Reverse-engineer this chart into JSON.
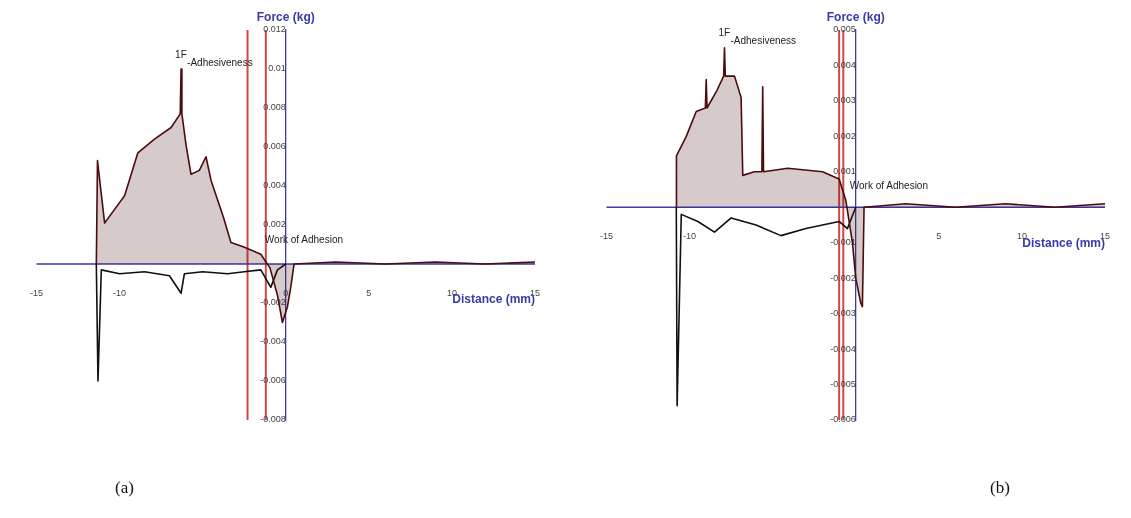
{
  "chart_data": [
    {
      "type": "line",
      "ylabel": "Force (kg)",
      "xlabel": "Distance (mm)",
      "xlim": [
        -15,
        15
      ],
      "xticks": [
        -15,
        -10,
        0,
        5,
        10,
        15
      ],
      "ylim": [
        -0.008,
        0.012
      ],
      "yticks": [
        -0.008,
        -0.006,
        -0.004,
        -0.002,
        0.002,
        0.004,
        0.006,
        0.008,
        0.01,
        0.012
      ],
      "grid": false,
      "legend": false,
      "marker": "none",
      "line_style": "solid",
      "series": [
        {
          "type": "area",
          "color": "#4a0c0c",
          "x": [
            -11.4,
            -11.33,
            -10.9,
            -10.3,
            -9.7,
            -8.9,
            -7.9,
            -6.9,
            -6.35,
            -6.3,
            -6.25,
            -6.0,
            -5.7,
            -5.2,
            -4.8,
            -4.5,
            -3.75,
            -3.3,
            -2.6,
            -1.5,
            -0.95,
            -0.5,
            -0.2,
            0.1,
            0.3,
            0.5,
            3,
            6,
            9,
            12,
            15
          ],
          "values": [
            0,
            0.0053,
            0.0021,
            0.0028,
            0.0035,
            0.0057,
            0.0064,
            0.007,
            0.0077,
            0.01,
            0.0077,
            0.0061,
            0.0046,
            0.0048,
            0.0055,
            0.0043,
            0.0024,
            0.0011,
            0.0009,
            0.0005,
            -0.0002,
            -0.0016,
            -0.003,
            -0.0022,
            -0.0012,
            0,
            0.0001,
            0,
            0.0001,
            0,
            0.0001
          ]
        },
        {
          "type": "line",
          "color": "#101010",
          "x": [
            -11.4,
            -11.3,
            -11.1,
            -10,
            -8.5,
            -7,
            -6.3,
            -6.1,
            -5,
            -3.5,
            -2.5,
            -1.5,
            -0.9,
            -0.5,
            0
          ],
          "values": [
            0,
            -0.006,
            -0.0003,
            -0.0005,
            -0.0004,
            -0.0006,
            -0.0015,
            -0.0005,
            -0.0004,
            -0.0005,
            -0.0004,
            -0.0003,
            -0.0012,
            -0.0003,
            0
          ]
        }
      ],
      "ref_lines": [
        {
          "axis": "x",
          "value": -2.3,
          "color": "#d04848"
        },
        {
          "axis": "x",
          "value": -1.2,
          "color": "#d04848"
        },
        {
          "axis": "y",
          "value": 0,
          "color": "#3a3aa8"
        }
      ],
      "annotations": [
        {
          "text": "1F",
          "x": -6.3,
          "y": 0.01
        },
        {
          "text": "-Adhesiveness",
          "x": -6.3,
          "y": 0.01
        },
        {
          "text": "Work of Adhesion",
          "x": -1.5,
          "y": 0.0005
        },
        "(a)"
      ]
    },
    {
      "type": "line",
      "ylabel": "Force (kg)",
      "xlabel": "Distance (mm)",
      "xlim": [
        -15,
        15
      ],
      "xticks": [
        -15,
        -10,
        5,
        10,
        15
      ],
      "ylim": [
        -0.006,
        0.005
      ],
      "yticks": [
        -0.006,
        -0.005,
        -0.004,
        -0.003,
        -0.002,
        -0.001,
        0.001,
        0.002,
        0.003,
        0.004,
        0.005
      ],
      "grid": false,
      "legend": false,
      "marker": "none",
      "line_style": "solid",
      "series": [
        {
          "type": "area",
          "color": "#4a0c0c",
          "x": [
            -10.8,
            -10.79,
            -10.2,
            -9.6,
            -9.05,
            -9.0,
            -8.95,
            -8.35,
            -7.95,
            -7.9,
            -7.85,
            -7.3,
            -6.9,
            -6.8,
            -6.1,
            -5.65,
            -5.6,
            -5.55,
            -4.1,
            -2.0,
            -1.0,
            -0.6,
            -0.2,
            0,
            0.3,
            0.4,
            0.5,
            3,
            6,
            9,
            12,
            15
          ],
          "values": [
            0,
            0.00145,
            0.002,
            0.0027,
            0.0028,
            0.0036,
            0.0028,
            0.0033,
            0.0037,
            0.0045,
            0.0037,
            0.0037,
            0.0031,
            0.0009,
            0.001,
            0.001,
            0.0034,
            0.001,
            0.0011,
            0.001,
            0.0008,
            0.0002,
            -0.001,
            -0.002,
            -0.0027,
            -0.0028,
            0,
            0.0001,
            0,
            0.0001,
            0,
            0.0001
          ]
        },
        {
          "type": "line",
          "color": "#101010",
          "x": [
            -10.8,
            -10.75,
            -10.5,
            -9.5,
            -8.5,
            -7.5,
            -6,
            -4.5,
            -3,
            -2,
            -1,
            -0.5,
            0
          ],
          "values": [
            0,
            -0.0056,
            -0.0002,
            -0.0004,
            -0.0007,
            -0.0003,
            -0.0005,
            -0.0008,
            -0.0006,
            -0.0005,
            -0.0004,
            -0.0006,
            0
          ]
        }
      ],
      "ref_lines": [
        {
          "axis": "x",
          "value": -1.0,
          "color": "#d04848"
        },
        {
          "axis": "x",
          "value": -0.75,
          "color": "#d04848"
        },
        {
          "axis": "y",
          "value": 0,
          "color": "#3a3aa8"
        }
      ],
      "annotations": [
        {
          "text": "1F",
          "x": -7.9,
          "y": 0.0045
        },
        {
          "text": "-Adhesiveness",
          "x": -7.9,
          "y": 0.0045
        },
        {
          "text": "Work of Adhesion",
          "x": -0.6,
          "y": 0.0002
        },
        "(b)"
      ]
    }
  ]
}
